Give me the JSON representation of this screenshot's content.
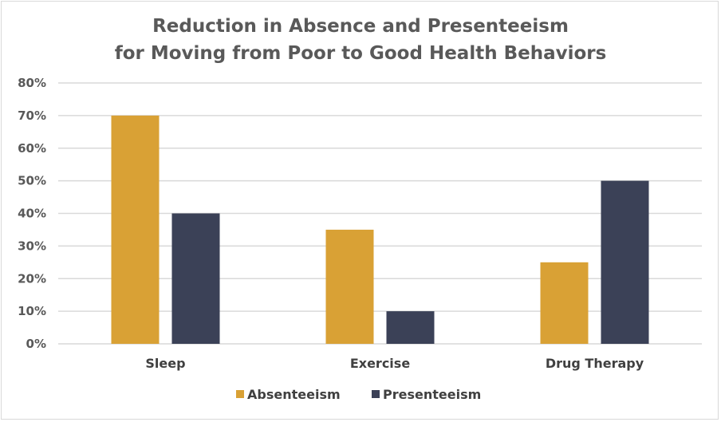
{
  "chart_data": {
    "type": "bar",
    "title_lines": [
      "Reduction in Absence and Presenteeism",
      "for Moving from Poor to Good Health Behaviors"
    ],
    "categories": [
      "Sleep",
      "Exercise",
      "Drug Therapy"
    ],
    "series": [
      {
        "name": "Absenteeism",
        "values": [
          70,
          35,
          25
        ],
        "color": "#D9A135"
      },
      {
        "name": "Presenteeism",
        "values": [
          40,
          10,
          50
        ],
        "color": "#3B4157"
      }
    ],
    "ylim": [
      0,
      80
    ],
    "yticks": [
      "0%",
      "10%",
      "20%",
      "30%",
      "40%",
      "50%",
      "60%",
      "70%",
      "80%"
    ],
    "grid": true,
    "legend": "bottom"
  }
}
